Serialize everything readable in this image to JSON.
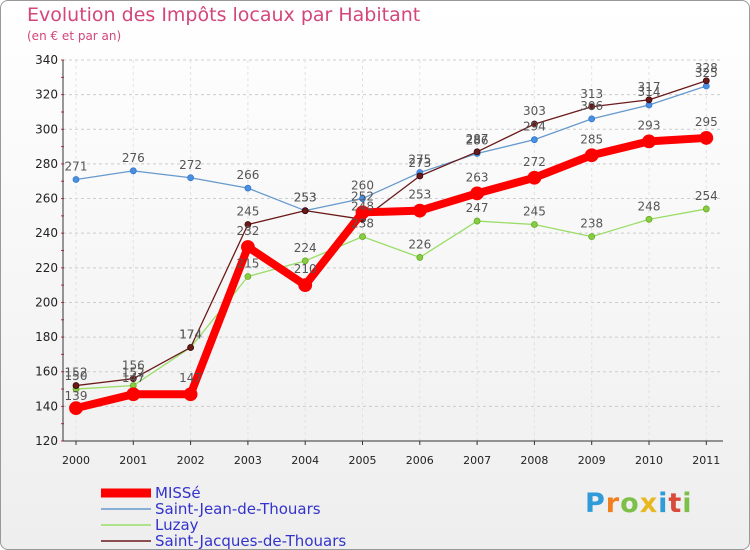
{
  "chart_data": {
    "type": "line",
    "title": "Evolution des Impôts locaux par Habitant",
    "subtitle": "(en € et par an)",
    "xlabel": "",
    "ylabel": "",
    "ylim": [
      120,
      340
    ],
    "yticks": [
      120,
      140,
      160,
      180,
      200,
      220,
      240,
      260,
      280,
      300,
      320,
      340
    ],
    "grid": "horizontal dashed",
    "legend_position": "bottom-left",
    "x": [
      "2000",
      "2001",
      "2002",
      "2003",
      "2004",
      "2005",
      "2006",
      "2007",
      "2008",
      "2009",
      "2010",
      "2011"
    ],
    "series": [
      {
        "name": "MISSé",
        "color": "#ff0000",
        "values": [
          139,
          147,
          147,
          232,
          210,
          252,
          253,
          263,
          272,
          285,
          293,
          295
        ]
      },
      {
        "name": "Saint-Jean-de-Thouars",
        "color": "#6699cc",
        "values": [
          271,
          276,
          272,
          266,
          253,
          260,
          275,
          286,
          294,
          306,
          314,
          325
        ]
      },
      {
        "name": "Luzay",
        "color": "#99dd66",
        "values": [
          150,
          152,
          174,
          215,
          224,
          238,
          226,
          247,
          245,
          238,
          248,
          254
        ]
      },
      {
        "name": "Saint-Jacques-de-Thouars",
        "color": "#6b1a1a",
        "values": [
          152,
          156,
          174,
          245,
          253,
          248,
          273,
          287,
          303,
          313,
          317,
          328
        ]
      }
    ]
  },
  "logo": {
    "letters": [
      "P",
      "r",
      "o",
      "x",
      "i",
      "t",
      "i"
    ]
  }
}
